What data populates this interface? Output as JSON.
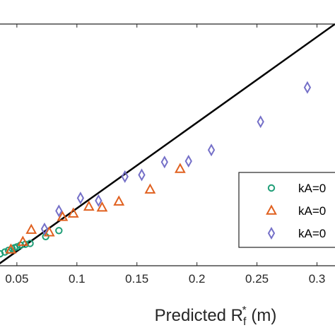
{
  "chart_data": {
    "type": "scatter",
    "xlabel_main": "Predicted R",
    "xlabel_sub": "f",
    "xlabel_sup": "*",
    "xlabel_unit": " (m)",
    "xlim": [
      0.033,
      0.315
    ],
    "ylim": [
      0.033,
      0.315
    ],
    "x_tick_labels": [
      {
        "value": 0.05,
        "label": "0.05"
      },
      {
        "value": 0.1,
        "label": "0.1"
      },
      {
        "value": 0.15,
        "label": "0.15"
      },
      {
        "value": 0.2,
        "label": "0.2"
      },
      {
        "value": 0.25,
        "label": "0.25"
      },
      {
        "value": 0.3,
        "label": "0.3"
      }
    ],
    "reference_line": {
      "from": [
        0.033,
        0.033
      ],
      "to": [
        0.315,
        0.315
      ],
      "color": "#000000"
    },
    "legend_placement": "lower-right",
    "series": [
      {
        "name": "kA=0",
        "marker": "circle",
        "color": "#1f9e77",
        "points": [
          [
            0.033,
            0.043
          ],
          [
            0.036,
            0.047
          ],
          [
            0.04,
            0.049
          ],
          [
            0.043,
            0.051
          ],
          [
            0.046,
            0.053
          ],
          [
            0.048,
            0.054
          ],
          [
            0.05,
            0.055
          ],
          [
            0.053,
            0.057
          ],
          [
            0.057,
            0.058
          ],
          [
            0.061,
            0.059
          ],
          [
            0.074,
            0.067
          ],
          [
            0.085,
            0.074
          ]
        ]
      },
      {
        "name": "kA=0",
        "marker": "triangle",
        "color": "#e0601f",
        "points": [
          [
            0.045,
            0.052
          ],
          [
            0.055,
            0.061
          ],
          [
            0.062,
            0.075
          ],
          [
            0.077,
            0.072
          ],
          [
            0.088,
            0.09
          ],
          [
            0.097,
            0.094
          ],
          [
            0.11,
            0.102
          ],
          [
            0.121,
            0.101
          ],
          [
            0.135,
            0.108
          ],
          [
            0.161,
            0.122
          ],
          [
            0.186,
            0.146
          ]
        ]
      },
      {
        "name": "kA=0",
        "marker": "diamond",
        "color": "#7570c8",
        "points": [
          [
            0.073,
            0.076
          ],
          [
            0.085,
            0.097
          ],
          [
            0.103,
            0.112
          ],
          [
            0.118,
            0.109
          ],
          [
            0.14,
            0.137
          ],
          [
            0.154,
            0.139
          ],
          [
            0.173,
            0.154
          ],
          [
            0.193,
            0.155
          ],
          [
            0.212,
            0.168
          ],
          [
            0.253,
            0.201
          ],
          [
            0.292,
            0.241
          ]
        ]
      }
    ]
  }
}
